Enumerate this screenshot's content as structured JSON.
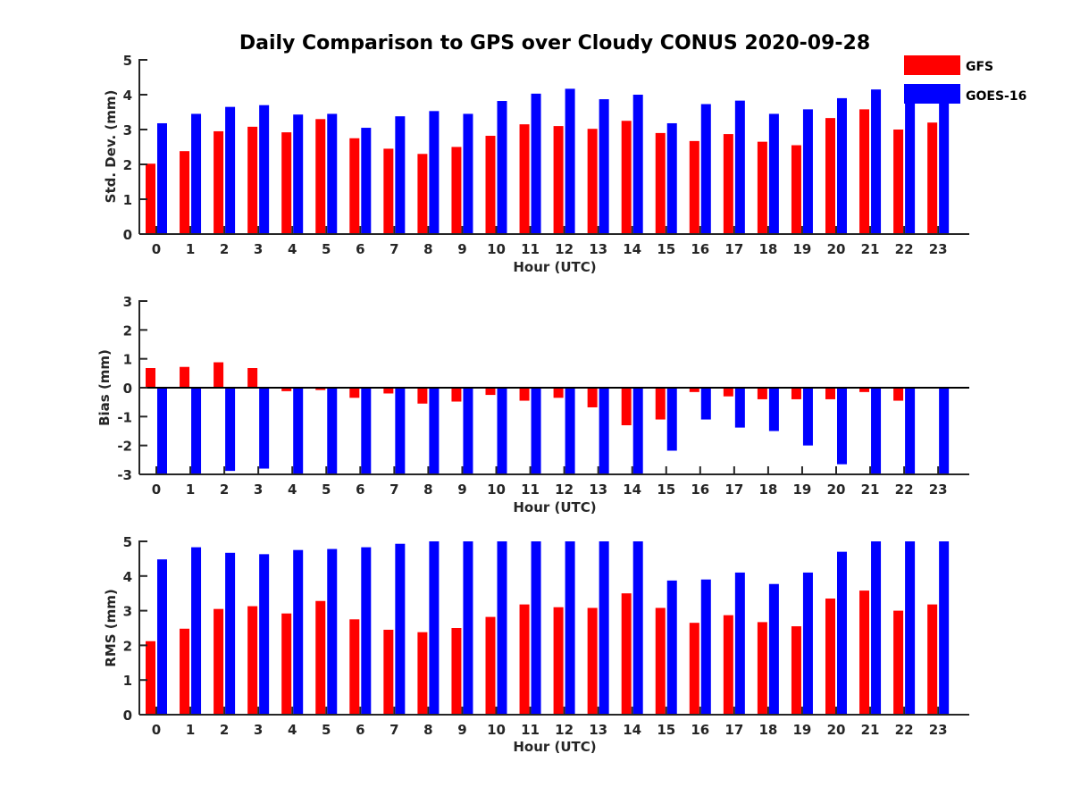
{
  "figure": {
    "title": "Daily Comparison to GPS over Cloudy CONUS 2020-09-28",
    "legend": {
      "placement": "top-right",
      "items": [
        {
          "name": "GFS",
          "color": "#ff0000"
        },
        {
          "name": "GOES-16",
          "color": "#0000ff"
        }
      ]
    }
  },
  "chart_data": [
    {
      "type": "bar",
      "title": "",
      "xlabel": "Hour (UTC)",
      "ylabel": "Std. Dev. (mm)",
      "ylim": [
        0,
        5
      ],
      "yticks": [
        0,
        1,
        2,
        3,
        4,
        5
      ],
      "categories": [
        "0",
        "1",
        "2",
        "3",
        "4",
        "5",
        "6",
        "7",
        "8",
        "9",
        "10",
        "11",
        "12",
        "13",
        "14",
        "15",
        "16",
        "17",
        "18",
        "19",
        "20",
        "21",
        "22",
        "23"
      ],
      "series": [
        {
          "name": "GFS",
          "color": "#ff0000",
          "values": [
            2.02,
            2.38,
            2.95,
            3.08,
            2.92,
            3.3,
            2.75,
            2.45,
            2.3,
            2.5,
            2.82,
            3.15,
            3.1,
            3.02,
            3.25,
            2.9,
            2.67,
            2.87,
            2.65,
            2.55,
            3.33,
            3.58,
            3.0,
            3.2
          ]
        },
        {
          "name": "GOES-16",
          "color": "#0000ff",
          "values": [
            3.18,
            3.45,
            3.65,
            3.7,
            3.43,
            3.45,
            3.05,
            3.38,
            3.53,
            3.45,
            3.82,
            4.03,
            4.17,
            3.87,
            4.0,
            3.18,
            3.73,
            3.83,
            3.45,
            3.58,
            3.9,
            4.15,
            3.75,
            3.9
          ]
        }
      ]
    },
    {
      "type": "bar",
      "title": "",
      "xlabel": "Hour (UTC)",
      "ylabel": "Bias (mm)",
      "ylim": [
        -3,
        3
      ],
      "yticks": [
        -3,
        -2,
        -1,
        0,
        1,
        2,
        3
      ],
      "categories": [
        "0",
        "1",
        "2",
        "3",
        "4",
        "5",
        "6",
        "7",
        "8",
        "9",
        "10",
        "11",
        "12",
        "13",
        "14",
        "15",
        "16",
        "17",
        "18",
        "19",
        "20",
        "21",
        "22",
        "23"
      ],
      "series": [
        {
          "name": "GFS",
          "color": "#ff0000",
          "values": [
            0.68,
            0.72,
            0.88,
            0.68,
            -0.12,
            -0.08,
            -0.35,
            -0.2,
            -0.55,
            -0.48,
            -0.25,
            -0.45,
            -0.35,
            -0.68,
            -1.3,
            -1.1,
            -0.15,
            -0.3,
            -0.4,
            -0.4,
            -0.4,
            -0.15,
            -0.45,
            0.0
          ]
        },
        {
          "name": "GOES-16",
          "color": "#0000ff",
          "values": [
            -3.0,
            -3.0,
            -2.88,
            -2.8,
            -3.0,
            -3.0,
            -3.0,
            -3.0,
            -3.0,
            -3.0,
            -3.0,
            -3.0,
            -3.0,
            -3.0,
            -3.0,
            -2.18,
            -1.1,
            -1.38,
            -1.5,
            -2.0,
            -2.65,
            -3.0,
            -3.0,
            -3.0
          ]
        }
      ]
    },
    {
      "type": "bar",
      "title": "",
      "xlabel": "Hour (UTC)",
      "ylabel": "RMS (mm)",
      "ylim": [
        0,
        5
      ],
      "yticks": [
        0,
        1,
        2,
        3,
        4,
        5
      ],
      "categories": [
        "0",
        "1",
        "2",
        "3",
        "4",
        "5",
        "6",
        "7",
        "8",
        "9",
        "10",
        "11",
        "12",
        "13",
        "14",
        "15",
        "16",
        "17",
        "18",
        "19",
        "20",
        "21",
        "22",
        "23"
      ],
      "series": [
        {
          "name": "GFS",
          "color": "#ff0000",
          "values": [
            2.12,
            2.48,
            3.05,
            3.13,
            2.92,
            3.28,
            2.75,
            2.45,
            2.38,
            2.5,
            2.82,
            3.18,
            3.1,
            3.08,
            3.5,
            3.08,
            2.65,
            2.87,
            2.67,
            2.55,
            3.35,
            3.58,
            3.0,
            3.18
          ]
        },
        {
          "name": "GOES-16",
          "color": "#0000ff",
          "values": [
            4.48,
            4.83,
            4.67,
            4.63,
            4.75,
            4.78,
            4.83,
            4.93,
            5.0,
            5.0,
            5.0,
            5.0,
            5.0,
            5.0,
            5.0,
            3.87,
            3.9,
            4.1,
            3.77,
            4.1,
            4.7,
            5.0,
            5.0,
            5.0
          ]
        }
      ]
    }
  ]
}
